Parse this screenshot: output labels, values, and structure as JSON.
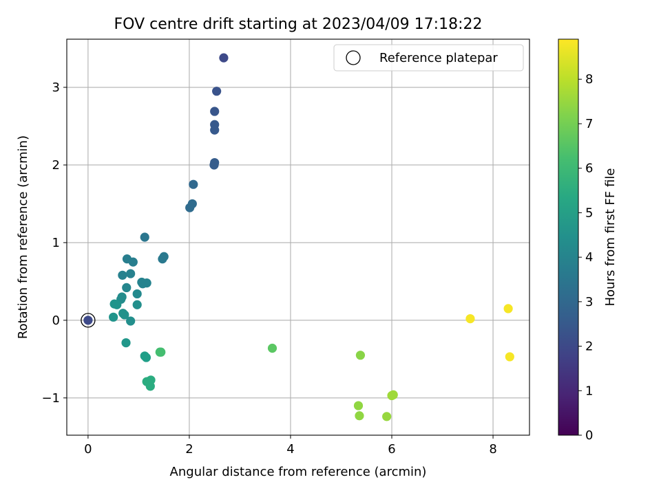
{
  "chart_data": {
    "type": "scatter",
    "title": "FOV centre drift starting at 2023/04/09 17:18:22",
    "xlabel": "Angular distance from reference (arcmin)",
    "ylabel": "Rotation from reference (arcmin)",
    "xlim": [
      -0.42,
      8.72
    ],
    "ylim": [
      -1.48,
      3.62
    ],
    "xticks": [
      0,
      2,
      4,
      6,
      8
    ],
    "xtick_labels": [
      "0",
      "2",
      "4",
      "6",
      "8"
    ],
    "yticks": [
      -1,
      0,
      1,
      2,
      3
    ],
    "ytick_labels": [
      "−1",
      "0",
      "1",
      "2",
      "3"
    ],
    "grid": true,
    "legend": {
      "position": "top-right",
      "entries": [
        "Reference platepar"
      ]
    },
    "reference_point": {
      "x": 0,
      "y": 0
    },
    "colorbar": {
      "label": "Hours from first FF file",
      "colormap": "viridis",
      "range": [
        0,
        8.9
      ],
      "ticks": [
        0,
        1,
        2,
        3,
        4,
        5,
        6,
        7,
        8
      ],
      "tick_labels": [
        "0",
        "1",
        "2",
        "3",
        "4",
        "5",
        "6",
        "7",
        "8"
      ]
    },
    "points": [
      {
        "x": 0.0,
        "y": 0.0,
        "hours": 2.0
      },
      {
        "x": 2.68,
        "y": 3.38,
        "hours": 2.0
      },
      {
        "x": 2.54,
        "y": 2.95,
        "hours": 2.3
      },
      {
        "x": 2.5,
        "y": 2.69,
        "hours": 2.4
      },
      {
        "x": 2.5,
        "y": 2.52,
        "hours": 2.5
      },
      {
        "x": 2.5,
        "y": 2.45,
        "hours": 2.5
      },
      {
        "x": 2.5,
        "y": 2.03,
        "hours": 2.6
      },
      {
        "x": 2.49,
        "y": 2.0,
        "hours": 2.6
      },
      {
        "x": 2.08,
        "y": 1.75,
        "hours": 3.0
      },
      {
        "x": 2.06,
        "y": 1.5,
        "hours": 3.1
      },
      {
        "x": 2.01,
        "y": 1.45,
        "hours": 3.1
      },
      {
        "x": 1.12,
        "y": 1.07,
        "hours": 3.5
      },
      {
        "x": 1.5,
        "y": 0.82,
        "hours": 3.6
      },
      {
        "x": 1.47,
        "y": 0.79,
        "hours": 3.6
      },
      {
        "x": 0.77,
        "y": 0.79,
        "hours": 3.8
      },
      {
        "x": 0.89,
        "y": 0.75,
        "hours": 3.8
      },
      {
        "x": 0.84,
        "y": 0.6,
        "hours": 3.9
      },
      {
        "x": 0.68,
        "y": 0.58,
        "hours": 3.9
      },
      {
        "x": 1.06,
        "y": 0.49,
        "hours": 4.0
      },
      {
        "x": 1.16,
        "y": 0.48,
        "hours": 4.0
      },
      {
        "x": 1.08,
        "y": 0.47,
        "hours": 4.0
      },
      {
        "x": 0.76,
        "y": 0.42,
        "hours": 4.1
      },
      {
        "x": 0.97,
        "y": 0.34,
        "hours": 4.2
      },
      {
        "x": 0.67,
        "y": 0.3,
        "hours": 4.3
      },
      {
        "x": 0.65,
        "y": 0.27,
        "hours": 4.3
      },
      {
        "x": 0.97,
        "y": 0.2,
        "hours": 4.4
      },
      {
        "x": 0.52,
        "y": 0.21,
        "hours": 4.6
      },
      {
        "x": 0.57,
        "y": 0.2,
        "hours": 4.6
      },
      {
        "x": 0.69,
        "y": 0.09,
        "hours": 4.5
      },
      {
        "x": 0.72,
        "y": 0.07,
        "hours": 4.5
      },
      {
        "x": 0.5,
        "y": 0.04,
        "hours": 4.6
      },
      {
        "x": 0.84,
        "y": -0.01,
        "hours": 4.4
      },
      {
        "x": 0.75,
        "y": -0.29,
        "hours": 4.7
      },
      {
        "x": 1.12,
        "y": -0.46,
        "hours": 5.0
      },
      {
        "x": 1.15,
        "y": -0.48,
        "hours": 5.0
      },
      {
        "x": 1.42,
        "y": -0.41,
        "hours": 6.2
      },
      {
        "x": 1.44,
        "y": -0.41,
        "hours": 6.2
      },
      {
        "x": 1.16,
        "y": -0.79,
        "hours": 5.5
      },
      {
        "x": 1.24,
        "y": -0.77,
        "hours": 5.5
      },
      {
        "x": 1.23,
        "y": -0.85,
        "hours": 5.5
      },
      {
        "x": 3.64,
        "y": -0.36,
        "hours": 6.6
      },
      {
        "x": 5.38,
        "y": -0.45,
        "hours": 7.3
      },
      {
        "x": 5.34,
        "y": -1.1,
        "hours": 7.4
      },
      {
        "x": 5.36,
        "y": -1.23,
        "hours": 7.4
      },
      {
        "x": 5.9,
        "y": -1.24,
        "hours": 7.5
      },
      {
        "x": 6.0,
        "y": -0.97,
        "hours": 7.6
      },
      {
        "x": 6.03,
        "y": -0.96,
        "hours": 7.6
      },
      {
        "x": 7.55,
        "y": 0.02,
        "hours": 8.8
      },
      {
        "x": 8.3,
        "y": 0.15,
        "hours": 8.8
      },
      {
        "x": 8.33,
        "y": -0.47,
        "hours": 8.8
      }
    ]
  }
}
